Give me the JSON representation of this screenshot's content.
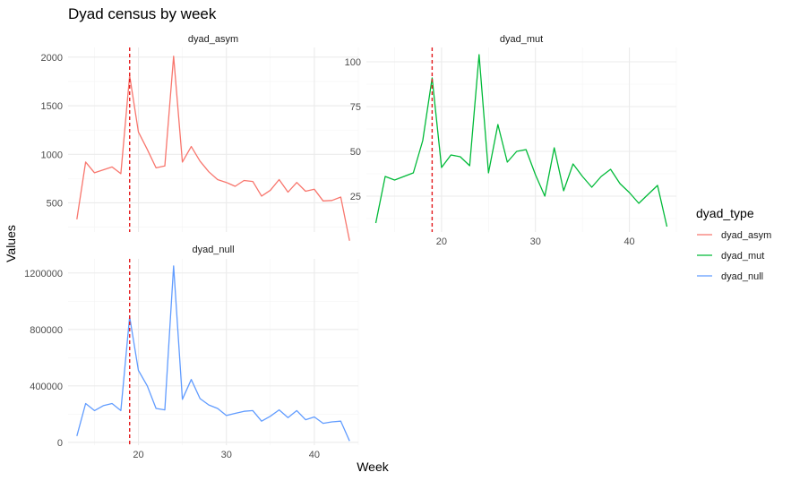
{
  "chart_data": {
    "type": "line",
    "title": "Dyad census by week",
    "xlabel": "Week",
    "ylabel": "Values",
    "legend": {
      "title": "dyad_type",
      "position": "right"
    },
    "vline": {
      "x": 19,
      "color": "#e41a1c",
      "style": "dashed"
    },
    "x_ticks": [
      20,
      30,
      40
    ],
    "xlim": [
      12,
      45
    ],
    "facets": [
      {
        "name": "dyad_asym",
        "color": "#F8766D",
        "ylim": [
          200,
          2100
        ],
        "y_ticks": [
          500,
          1000,
          1500,
          2000
        ],
        "y_tick_labels": [
          "500",
          "1000",
          "1500",
          "2000"
        ],
        "x": [
          13,
          14,
          15,
          16,
          17,
          18,
          19,
          20,
          21,
          22,
          23,
          24,
          25,
          26,
          27,
          28,
          29,
          30,
          31,
          32,
          33,
          34,
          35,
          36,
          37,
          38,
          39,
          40,
          41,
          42,
          43,
          44
        ],
        "values": [
          330,
          920,
          810,
          840,
          870,
          800,
          1810,
          1230,
          1050,
          860,
          880,
          2010,
          920,
          1080,
          930,
          820,
          740,
          710,
          670,
          730,
          720,
          570,
          630,
          740,
          610,
          710,
          620,
          640,
          520,
          525,
          560,
          110
        ]
      },
      {
        "name": "dyad_mut",
        "color": "#00BA38",
        "ylim": [
          5,
          108
        ],
        "y_ticks": [
          25,
          50,
          75,
          100
        ],
        "y_tick_labels": [
          "25",
          "50",
          "75",
          "100"
        ],
        "x": [
          13,
          14,
          15,
          16,
          17,
          18,
          19,
          20,
          21,
          22,
          23,
          24,
          25,
          26,
          27,
          28,
          29,
          30,
          31,
          32,
          33,
          34,
          35,
          36,
          37,
          38,
          39,
          40,
          41,
          42,
          43,
          44
        ],
        "values": [
          10,
          36,
          34,
          36,
          38,
          56,
          91,
          41,
          48,
          47,
          42,
          104,
          38,
          65,
          44,
          50,
          51,
          37,
          25,
          52,
          28,
          43,
          36,
          30,
          36,
          40,
          32,
          27,
          21,
          26,
          31,
          8
        ]
      },
      {
        "name": "dyad_null",
        "color": "#619CFF",
        "ylim": [
          -20000,
          1300000
        ],
        "y_ticks": [
          0,
          400000,
          800000,
          1200000
        ],
        "y_tick_labels": [
          "0",
          "400000",
          "800000",
          "1200000"
        ],
        "x": [
          13,
          14,
          15,
          16,
          17,
          18,
          19,
          20,
          21,
          22,
          23,
          24,
          25,
          26,
          27,
          28,
          29,
          30,
          31,
          32,
          33,
          34,
          35,
          36,
          37,
          38,
          39,
          40,
          41,
          42,
          43,
          44
        ],
        "values": [
          45000,
          275000,
          225000,
          260000,
          275000,
          225000,
          890000,
          510000,
          400000,
          240000,
          230000,
          1250000,
          305000,
          445000,
          310000,
          265000,
          240000,
          190000,
          205000,
          220000,
          225000,
          150000,
          185000,
          230000,
          175000,
          225000,
          160000,
          180000,
          135000,
          145000,
          150000,
          10000
        ]
      }
    ]
  }
}
